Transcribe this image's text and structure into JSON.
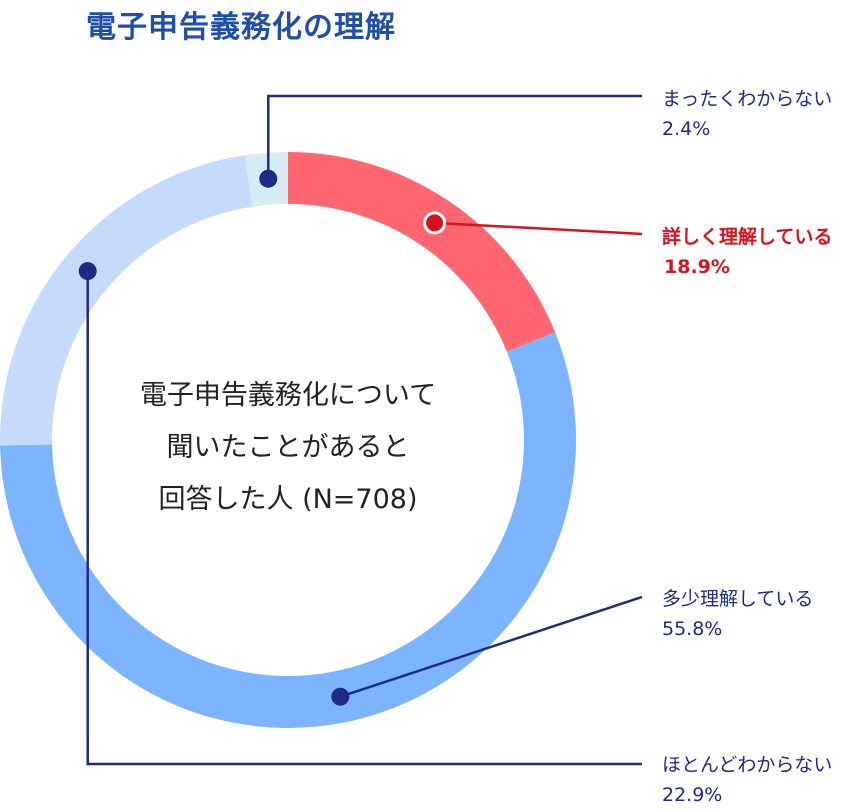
{
  "title": "電子申告義務化の理解",
  "center_text": {
    "line1": "電子申告義務化について",
    "line2": "聞いたことがあると",
    "line3": "回答した人 (N=708)"
  },
  "colors": {
    "title": "#1f4fa8",
    "label": "#1e2a87",
    "highlight_label": "#d7121f",
    "leader_line": "#1e2a87",
    "highlight_line": "#d7121f"
  },
  "chart_data": {
    "type": "pie",
    "donut": true,
    "unit": "%",
    "categories": [
      "詳しく理解している",
      "多少理解している",
      "ほとんどわからない",
      "まったくわからない"
    ],
    "values": [
      18.9,
      55.8,
      22.9,
      2.4
    ],
    "value_labels": [
      "18.9%",
      "55.8%",
      "22.9%",
      "2.4%"
    ],
    "colors": [
      "#ff6670",
      "#7cb4ff",
      "#c5dbfb",
      "#d5ecf3"
    ],
    "highlighted": "詳しく理解している",
    "start": "top",
    "direction": "clockwise"
  }
}
